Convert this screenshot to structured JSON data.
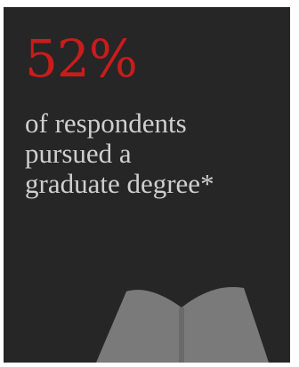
{
  "infographic": {
    "stat_value": "52%",
    "description_lines": [
      "of respondents",
      "pursued a",
      "graduate degree*"
    ],
    "icon": "open-book-icon"
  },
  "colors": {
    "background": "#262626",
    "stat": "#c91c1c",
    "text": "#cfcfcf",
    "icon": "#7a7a7a"
  }
}
